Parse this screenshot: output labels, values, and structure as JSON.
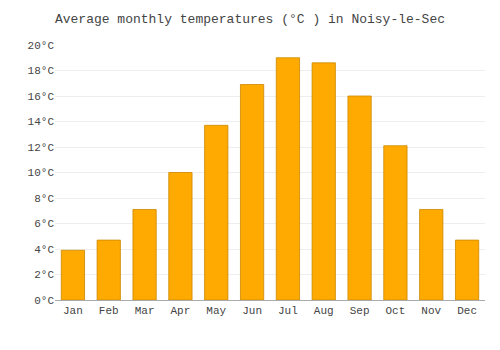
{
  "chart_data": {
    "type": "bar",
    "title": "Average monthly temperatures (°C ) in Noisy-le-Sec",
    "categories": [
      "Jan",
      "Feb",
      "Mar",
      "Apr",
      "May",
      "Jun",
      "Jul",
      "Aug",
      "Sep",
      "Oct",
      "Nov",
      "Dec"
    ],
    "values": [
      3.9,
      4.7,
      7.1,
      10.0,
      13.7,
      16.9,
      19.0,
      18.6,
      16.0,
      12.1,
      7.1,
      4.7
    ],
    "color": "#FFAA00",
    "ylim": [
      0,
      20
    ],
    "yticks": [
      {
        "value": 0,
        "label": "0°C"
      },
      {
        "value": 2,
        "label": "2°C"
      },
      {
        "value": 4,
        "label": "4°C"
      },
      {
        "value": 6,
        "label": "6°C"
      },
      {
        "value": 8,
        "label": "8°C"
      },
      {
        "value": 10,
        "label": "10°C"
      },
      {
        "value": 12,
        "label": "12°C"
      },
      {
        "value": 14,
        "label": "14°C"
      },
      {
        "value": 16,
        "label": "16°C"
      },
      {
        "value": 18,
        "label": "18°C"
      },
      {
        "value": 20,
        "label": "20°C"
      }
    ],
    "grid": true
  }
}
